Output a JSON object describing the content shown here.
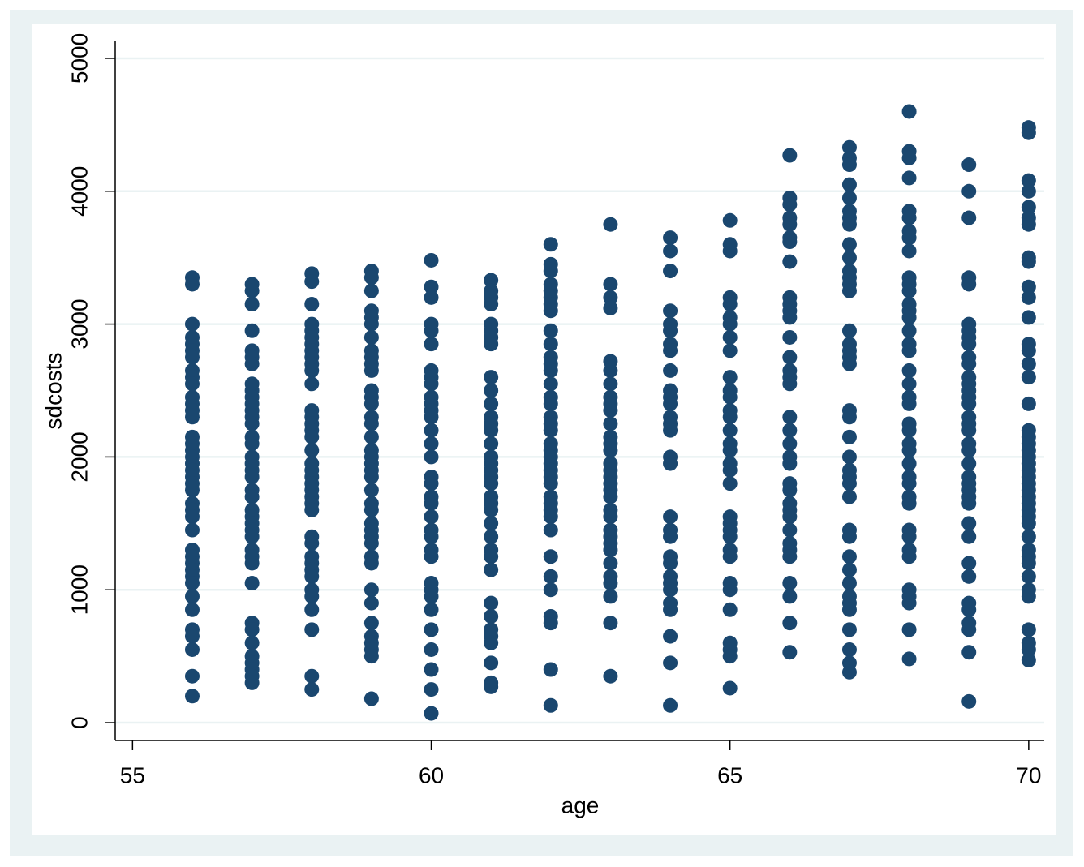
{
  "chart_data": {
    "type": "scatter",
    "x_label": "age",
    "y_label": "sdcosts",
    "color": "#1a476f",
    "grid": true,
    "xlim": [
      54.71,
      70.26
    ],
    "xticks": [
      55,
      60,
      65,
      70
    ],
    "ylim": [
      -134,
      5134
    ],
    "yticks": [
      0,
      1000,
      2000,
      3000,
      4000,
      5000
    ],
    "series": [
      {
        "x": 56,
        "values": [
          3350,
          3300,
          3000,
          2900,
          2850,
          2800,
          2750,
          2650,
          2600,
          2550,
          2450,
          2400,
          2350,
          2300,
          2150,
          2100,
          2050,
          2000,
          1950,
          1900,
          1850,
          1800,
          1750,
          1650,
          1600,
          1550,
          1450,
          1300,
          1250,
          1200,
          1150,
          1100,
          1050,
          950,
          850,
          700,
          650,
          550,
          350,
          200
        ]
      },
      {
        "x": 57,
        "values": [
          3300,
          3250,
          3150,
          2950,
          2800,
          2750,
          2700,
          2550,
          2500,
          2450,
          2400,
          2350,
          2300,
          2250,
          2150,
          2100,
          2000,
          1950,
          1900,
          1850,
          1750,
          1700,
          1600,
          1550,
          1500,
          1450,
          1400,
          1300,
          1250,
          1200,
          1050,
          750,
          700,
          600,
          500,
          450,
          400,
          350,
          300
        ]
      },
      {
        "x": 58,
        "values": [
          3380,
          3320,
          3150,
          3000,
          2950,
          2900,
          2850,
          2800,
          2750,
          2700,
          2650,
          2550,
          2350,
          2300,
          2250,
          2200,
          2150,
          2050,
          1950,
          1900,
          1850,
          1800,
          1750,
          1700,
          1650,
          1600,
          1400,
          1350,
          1250,
          1200,
          1150,
          1100,
          1000,
          950,
          850,
          700,
          350,
          250
        ]
      },
      {
        "x": 59,
        "values": [
          3400,
          3350,
          3250,
          3100,
          3050,
          3000,
          2900,
          2800,
          2750,
          2700,
          2650,
          2500,
          2450,
          2400,
          2300,
          2250,
          2150,
          2050,
          2000,
          1950,
          1900,
          1850,
          1750,
          1650,
          1600,
          1500,
          1450,
          1400,
          1350,
          1250,
          1200,
          1000,
          900,
          750,
          650,
          600,
          550,
          500,
          180
        ]
      },
      {
        "x": 60,
        "values": [
          3480,
          3280,
          3200,
          3000,
          2950,
          2850,
          2650,
          2600,
          2550,
          2450,
          2400,
          2350,
          2300,
          2200,
          2100,
          2000,
          1850,
          1800,
          1700,
          1650,
          1550,
          1450,
          1400,
          1300,
          1250,
          1050,
          1000,
          950,
          850,
          700,
          550,
          400,
          250,
          70
        ]
      },
      {
        "x": 61,
        "values": [
          3330,
          3250,
          3200,
          3150,
          3000,
          2950,
          2900,
          2850,
          2600,
          2500,
          2400,
          2300,
          2250,
          2200,
          2100,
          2000,
          1950,
          1900,
          1850,
          1800,
          1700,
          1650,
          1600,
          1500,
          1400,
          1300,
          1250,
          1150,
          900,
          800,
          700,
          650,
          600,
          450,
          300,
          270
        ]
      },
      {
        "x": 62,
        "values": [
          3600,
          3450,
          3400,
          3300,
          3250,
          3200,
          3150,
          3100,
          2950,
          2850,
          2750,
          2700,
          2650,
          2550,
          2450,
          2400,
          2300,
          2250,
          2200,
          2100,
          2050,
          2000,
          1950,
          1900,
          1850,
          1800,
          1700,
          1650,
          1600,
          1550,
          1450,
          1250,
          1100,
          1000,
          800,
          750,
          400,
          130
        ]
      },
      {
        "x": 63,
        "values": [
          3750,
          3300,
          3200,
          3120,
          2720,
          2650,
          2550,
          2450,
          2400,
          2350,
          2250,
          2150,
          2100,
          2050,
          1950,
          1900,
          1850,
          1800,
          1750,
          1700,
          1600,
          1550,
          1450,
          1400,
          1350,
          1300,
          1200,
          1100,
          1050,
          950,
          750,
          350
        ]
      },
      {
        "x": 64,
        "values": [
          3650,
          3550,
          3400,
          3100,
          3000,
          2950,
          2850,
          2800,
          2650,
          2500,
          2450,
          2400,
          2300,
          2250,
          2200,
          2000,
          1950,
          1550,
          1450,
          1400,
          1250,
          1200,
          1100,
          1050,
          1000,
          900,
          850,
          650,
          450,
          130
        ]
      },
      {
        "x": 65,
        "values": [
          3780,
          3600,
          3550,
          3200,
          3150,
          3050,
          3000,
          2900,
          2800,
          2600,
          2500,
          2450,
          2350,
          2300,
          2200,
          2100,
          2050,
          1950,
          1900,
          1800,
          1550,
          1500,
          1450,
          1400,
          1300,
          1250,
          1050,
          1000,
          850,
          600,
          550,
          500,
          260
        ]
      },
      {
        "x": 66,
        "values": [
          4270,
          3950,
          3900,
          3800,
          3750,
          3650,
          3620,
          3470,
          3200,
          3150,
          3100,
          3050,
          2900,
          2750,
          2650,
          2600,
          2550,
          2300,
          2200,
          2100,
          2000,
          1950,
          1800,
          1750,
          1650,
          1600,
          1550,
          1450,
          1350,
          1300,
          1250,
          1050,
          950,
          750,
          530
        ]
      },
      {
        "x": 67,
        "values": [
          4330,
          4250,
          4200,
          4050,
          3950,
          3850,
          3800,
          3750,
          3600,
          3500,
          3400,
          3350,
          3300,
          3250,
          2950,
          2850,
          2800,
          2750,
          2700,
          2350,
          2300,
          2150,
          2000,
          1900,
          1850,
          1800,
          1700,
          1450,
          1400,
          1250,
          1150,
          1050,
          950,
          900,
          850,
          700,
          550,
          450,
          380
        ]
      },
      {
        "x": 68,
        "values": [
          4600,
          4300,
          4250,
          4100,
          3850,
          3800,
          3700,
          3650,
          3550,
          3350,
          3300,
          3250,
          3150,
          3100,
          3050,
          2950,
          2850,
          2800,
          2650,
          2550,
          2450,
          2400,
          2250,
          2200,
          2100,
          2050,
          1950,
          1850,
          1800,
          1700,
          1650,
          1450,
          1400,
          1300,
          1250,
          1000,
          950,
          900,
          700,
          480
        ]
      },
      {
        "x": 69,
        "values": [
          4200,
          4000,
          3800,
          3350,
          3300,
          3000,
          2950,
          2900,
          2850,
          2750,
          2700,
          2600,
          2550,
          2500,
          2450,
          2400,
          2300,
          2250,
          2200,
          2100,
          2050,
          1950,
          1850,
          1800,
          1750,
          1700,
          1650,
          1500,
          1400,
          1200,
          1100,
          900,
          850,
          750,
          700,
          530,
          160
        ]
      },
      {
        "x": 70,
        "values": [
          4480,
          4440,
          4080,
          4000,
          3880,
          3800,
          3750,
          3500,
          3470,
          3280,
          3200,
          3050,
          2850,
          2800,
          2700,
          2600,
          2400,
          2200,
          2150,
          2100,
          2050,
          2000,
          1950,
          1900,
          1850,
          1800,
          1750,
          1700,
          1650,
          1600,
          1550,
          1500,
          1400,
          1300,
          1250,
          1200,
          1100,
          1000,
          950,
          700,
          600,
          550,
          470
        ]
      }
    ]
  }
}
